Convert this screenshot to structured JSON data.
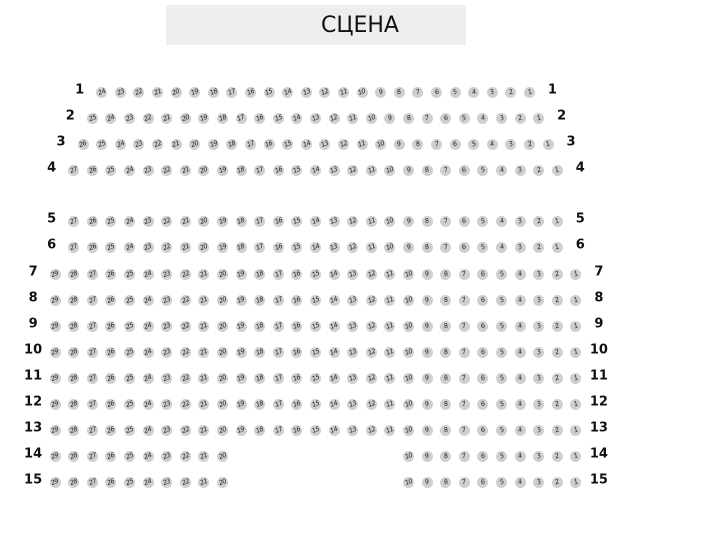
{
  "stage": {
    "label": "СЦЕНА"
  },
  "colors": {
    "seat": "#cfcfcf",
    "stage": "#eeeeee"
  },
  "rows": [
    {
      "label": "1",
      "max": 24,
      "ranges": [
        [
          24,
          1
        ]
      ]
    },
    {
      "label": "2",
      "max": 25,
      "ranges": [
        [
          25,
          1
        ]
      ]
    },
    {
      "label": "3",
      "max": 26,
      "ranges": [
        [
          26,
          1
        ]
      ]
    },
    {
      "label": "4",
      "max": 27,
      "ranges": [
        [
          27,
          1
        ]
      ]
    },
    {
      "label": "5",
      "max": 27,
      "ranges": [
        [
          27,
          1
        ]
      ]
    },
    {
      "label": "6",
      "max": 27,
      "ranges": [
        [
          27,
          1
        ]
      ]
    },
    {
      "label": "7",
      "max": 29,
      "ranges": [
        [
          29,
          1
        ]
      ]
    },
    {
      "label": "8",
      "max": 29,
      "ranges": [
        [
          29,
          1
        ]
      ]
    },
    {
      "label": "9",
      "max": 29,
      "ranges": [
        [
          29,
          1
        ]
      ]
    },
    {
      "label": "10",
      "max": 29,
      "ranges": [
        [
          29,
          1
        ]
      ]
    },
    {
      "label": "11",
      "max": 29,
      "ranges": [
        [
          29,
          1
        ]
      ]
    },
    {
      "label": "12",
      "max": 29,
      "ranges": [
        [
          29,
          1
        ]
      ]
    },
    {
      "label": "13",
      "max": 29,
      "ranges": [
        [
          29,
          1
        ]
      ]
    },
    {
      "label": "14",
      "max": 29,
      "ranges": [
        [
          29,
          20
        ],
        [
          10,
          1
        ]
      ]
    },
    {
      "label": "15",
      "max": 29,
      "ranges": [
        [
          29,
          20
        ],
        [
          10,
          1
        ]
      ]
    }
  ]
}
